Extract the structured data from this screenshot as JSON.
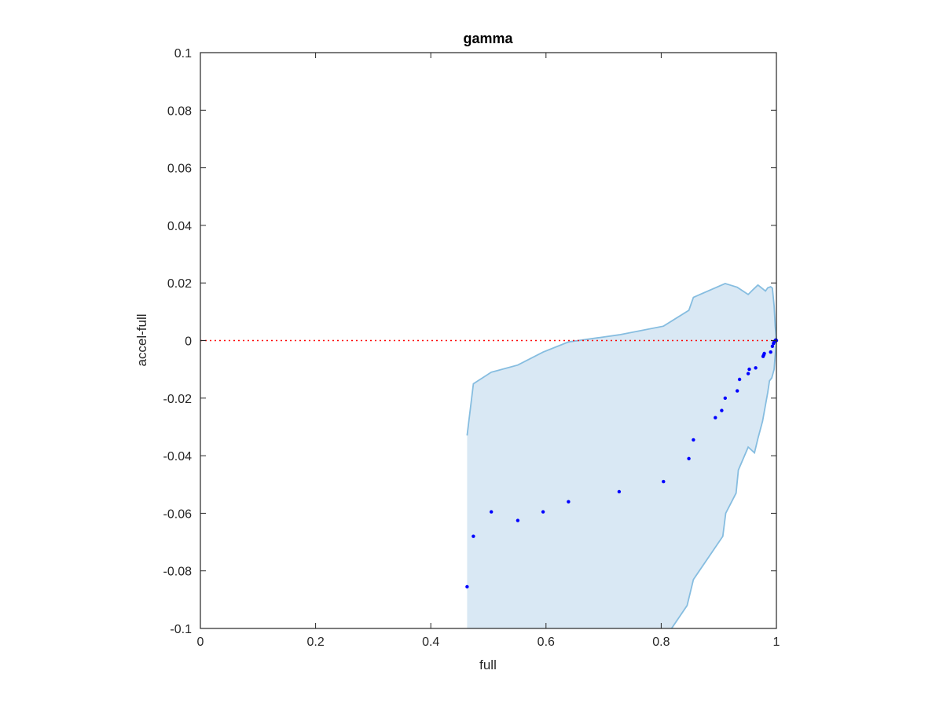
{
  "chart_data": {
    "type": "scatter",
    "title": "gamma",
    "xlabel": "full",
    "ylabel": "accel-full",
    "xlim": [
      0,
      1
    ],
    "ylim": [
      -0.1,
      0.1
    ],
    "xticks": [
      0,
      0.2,
      0.4,
      0.6,
      0.8,
      1
    ],
    "xtick_labels": [
      "0",
      "0.2",
      "0.4",
      "0.6",
      "0.8",
      "1"
    ],
    "yticks": [
      -0.1,
      -0.08,
      -0.06,
      -0.04,
      -0.02,
      0,
      0.02,
      0.04,
      0.06,
      0.08,
      0.1
    ],
    "ytick_labels": [
      "-0.1",
      "-0.08",
      "-0.06",
      "-0.04",
      "-0.02",
      "0",
      "0.02",
      "0.04",
      "0.06",
      "0.08",
      "0.1"
    ],
    "grid": false,
    "colors": {
      "points": "#0000ff",
      "band_fill": "#d9e8f4",
      "band_edge": "#86bde0",
      "reference_line": "#ff0000",
      "axes": "#262626"
    },
    "reference_line": {
      "y": 0,
      "style": "dotted"
    },
    "band": {
      "upper": [
        [
          0.463,
          -0.033
        ],
        [
          0.474,
          -0.015
        ],
        [
          0.505,
          -0.011
        ],
        [
          0.551,
          -0.0085
        ],
        [
          0.595,
          -0.004
        ],
        [
          0.639,
          -0.0005
        ],
        [
          0.727,
          0.002
        ],
        [
          0.804,
          0.005
        ],
        [
          0.848,
          0.0105
        ],
        [
          0.856,
          0.015
        ],
        [
          0.911,
          0.0198
        ],
        [
          0.932,
          0.0185
        ],
        [
          0.951,
          0.016
        ],
        [
          0.96,
          0.0178
        ],
        [
          0.968,
          0.0193
        ],
        [
          0.981,
          0.0172
        ],
        [
          0.985,
          0.0183
        ],
        [
          0.99,
          0.0187
        ],
        [
          0.993,
          0.0182
        ],
        [
          0.996,
          0.012
        ],
        [
          0.998,
          0.005
        ],
        [
          1.0,
          0.0005
        ]
      ],
      "lower": [
        [
          1.0,
          -0.0005
        ],
        [
          0.998,
          -0.005
        ],
        [
          0.996,
          -0.01
        ],
        [
          0.992,
          -0.013
        ],
        [
          0.988,
          -0.014
        ],
        [
          0.985,
          -0.018
        ],
        [
          0.976,
          -0.028
        ],
        [
          0.968,
          -0.034
        ],
        [
          0.962,
          -0.039
        ],
        [
          0.951,
          -0.037
        ],
        [
          0.934,
          -0.045
        ],
        [
          0.93,
          -0.053
        ],
        [
          0.912,
          -0.06
        ],
        [
          0.907,
          -0.068
        ],
        [
          0.856,
          -0.083
        ],
        [
          0.845,
          -0.092
        ],
        [
          0.818,
          -0.1
        ],
        [
          0.463,
          -0.1
        ]
      ]
    },
    "points": [
      {
        "x": 0.463,
        "y": -0.0855
      },
      {
        "x": 0.474,
        "y": -0.068
      },
      {
        "x": 0.505,
        "y": -0.0595
      },
      {
        "x": 0.551,
        "y": -0.0625
      },
      {
        "x": 0.595,
        "y": -0.0595
      },
      {
        "x": 0.639,
        "y": -0.056
      },
      {
        "x": 0.727,
        "y": -0.0525
      },
      {
        "x": 0.804,
        "y": -0.049
      },
      {
        "x": 0.848,
        "y": -0.041
      },
      {
        "x": 0.856,
        "y": -0.0345
      },
      {
        "x": 0.894,
        "y": -0.0268
      },
      {
        "x": 0.905,
        "y": -0.0243
      },
      {
        "x": 0.911,
        "y": -0.02
      },
      {
        "x": 0.932,
        "y": -0.0175
      },
      {
        "x": 0.936,
        "y": -0.0135
      },
      {
        "x": 0.951,
        "y": -0.0115
      },
      {
        "x": 0.953,
        "y": -0.01
      },
      {
        "x": 0.964,
        "y": -0.0095
      },
      {
        "x": 0.977,
        "y": -0.0055
      },
      {
        "x": 0.978,
        "y": -0.005
      },
      {
        "x": 0.979,
        "y": -0.0045
      },
      {
        "x": 0.99,
        "y": -0.004
      },
      {
        "x": 0.993,
        "y": -0.002
      },
      {
        "x": 0.995,
        "y": -0.001
      },
      {
        "x": 0.996,
        "y": -0.0005
      },
      {
        "x": 0.998,
        "y": 0.0
      },
      {
        "x": 0.999,
        "y": 0.0002
      },
      {
        "x": 1.0,
        "y": 0.0
      }
    ]
  }
}
